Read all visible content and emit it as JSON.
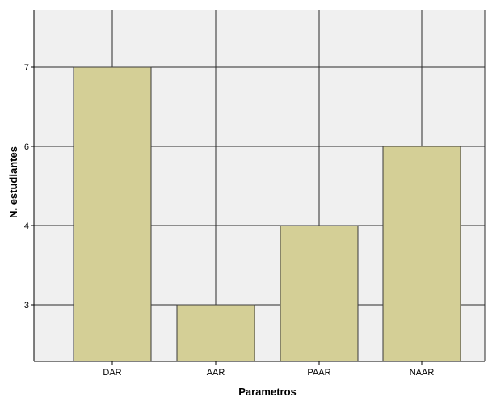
{
  "chart_data": {
    "type": "bar",
    "categories": [
      "DAR",
      "AAR",
      "PAAR",
      "NAAR"
    ],
    "values": [
      7,
      3,
      4,
      6
    ],
    "y_tick_labels": [
      "3",
      "4",
      "6",
      "7"
    ],
    "xlabel": "Parametros",
    "ylabel": "N. estudiantes",
    "grid": true,
    "colors": {
      "bar_fill": "#d4cf96",
      "bar_stroke": "#3a3a3a",
      "plot_background": "#f0f0f0",
      "grid": "#2a2a2a"
    }
  }
}
